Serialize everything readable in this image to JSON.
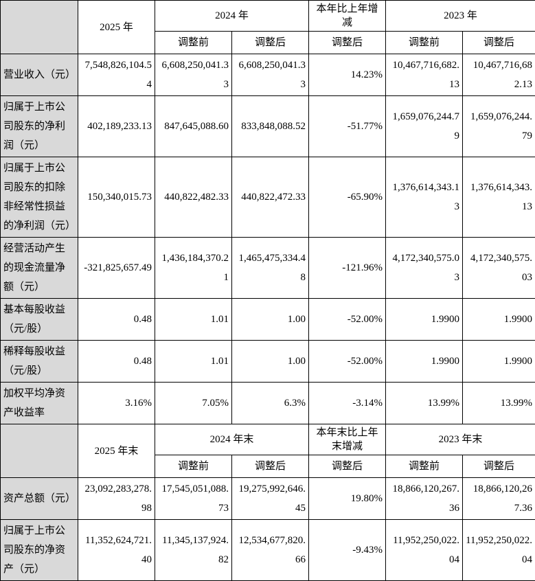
{
  "header1": {
    "y2025": "2025 年",
    "y2024": "2024 年",
    "change": "本年比上年增减",
    "y2023": "2023 年",
    "before": "调整前",
    "after": "调整后"
  },
  "rows1": [
    {
      "label": "营业收入（元）",
      "v": [
        "7,548,826,104.54",
        "6,608,250,041.33",
        "6,608,250,041.33",
        "14.23%",
        "10,467,716,682.13",
        "10,467,716,682.13"
      ]
    },
    {
      "label": "归属于上市公司股东的净利润（元）",
      "v": [
        "402,189,233.13",
        "847,645,088.60",
        "833,848,088.52",
        "-51.77%",
        "1,659,076,244.79",
        "1,659,076,244.79"
      ]
    },
    {
      "label": "归属于上市公司股东的扣除非经常性损益的净利润（元）",
      "v": [
        "150,340,015.73",
        "440,822,482.33",
        "440,822,472.33",
        "-65.90%",
        "1,376,614,343.13",
        "1,376,614,343.13"
      ]
    },
    {
      "label": "经营活动产生的现金流量净额（元）",
      "v": [
        "-321,825,657.49",
        "1,436,184,370.21",
        "1,465,475,334.48",
        "-121.96%",
        "4,172,340,575.03",
        "4,172,340,575.03"
      ]
    },
    {
      "label": "基本每股收益（元/股）",
      "v": [
        "0.48",
        "1.01",
        "1.00",
        "-52.00%",
        "1.9900",
        "1.9900"
      ]
    },
    {
      "label": "稀释每股收益（元/股）",
      "v": [
        "0.48",
        "1.01",
        "1.00",
        "-52.00%",
        "1.9900",
        "1.9900"
      ]
    },
    {
      "label": "加权平均净资产收益率",
      "v": [
        "3.16%",
        "7.05%",
        "6.3%",
        "-3.14%",
        "13.99%",
        "13.99%"
      ]
    }
  ],
  "header2": {
    "y2025": "2025 年末",
    "y2024": "2024 年末",
    "change": "本年末比上年末增减",
    "y2023": "2023 年末",
    "before": "调整前",
    "after": "调整后"
  },
  "rows2": [
    {
      "label": "资产总额（元）",
      "v": [
        "23,092,283,278.98",
        "17,545,051,088.73",
        "19,275,992,646.45",
        "19.80%",
        "18,866,120,267.36",
        "18,866,120,267.36"
      ]
    },
    {
      "label": "归属于上市公司股东的净资产（元）",
      "v": [
        "11,352,624,721.40",
        "11,345,137,924.82",
        "12,534,677,820.66",
        "-9.43%",
        "11,952,250,022.04",
        "11,952,250,022.04"
      ]
    }
  ]
}
